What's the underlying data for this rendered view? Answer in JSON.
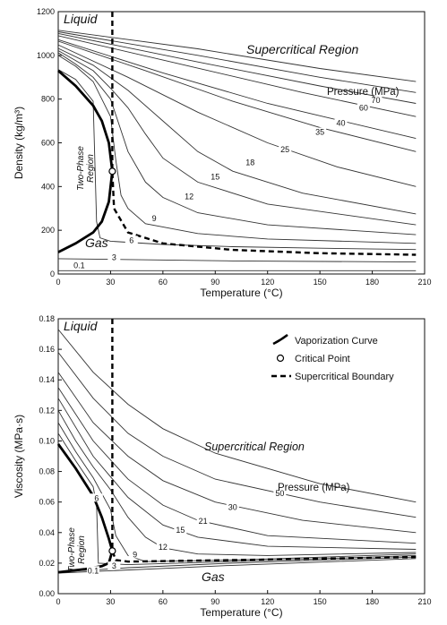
{
  "chart_data": [
    {
      "type": "line",
      "xlabel": "Temperature (°C)",
      "ylabel": "Density (kg/m³)",
      "xlim": [
        0,
        210
      ],
      "ylim": [
        0,
        1200
      ],
      "xticks": [
        0,
        30,
        60,
        90,
        120,
        150,
        180,
        210
      ],
      "yticks": [
        0,
        200,
        400,
        600,
        800,
        1000,
        1200
      ],
      "grid": false,
      "annotations": {
        "liquid": "Liquid",
        "supercritical": "Supercritical Region",
        "two_phase_1": "Two-Phase",
        "two_phase_2": "Region",
        "gas": "Gas",
        "pressure_title": "Pressure (MPa)"
      },
      "isobars": [
        {
          "label": "0.1",
          "points": [
            [
              0,
              15
            ],
            [
              205,
              15
            ]
          ]
        },
        {
          "label": "3",
          "points": [
            [
              0,
              70
            ],
            [
              100,
              60
            ],
            [
              205,
              55
            ]
          ]
        },
        {
          "label": "6",
          "points": [
            [
              0,
              935
            ],
            [
              10,
              890
            ],
            [
              20,
              790
            ],
            [
              22,
              240
            ],
            [
              24,
              165
            ],
            [
              30,
              150
            ],
            [
              60,
              135
            ],
            [
              100,
              125
            ],
            [
              150,
              118
            ],
            [
              205,
              112
            ]
          ]
        },
        {
          "label": "9",
          "points": [
            [
              0,
              1000
            ],
            [
              10,
              950
            ],
            [
              20,
              880
            ],
            [
              30,
              720
            ],
            [
              33,
              520
            ],
            [
              36,
              360
            ],
            [
              40,
              300
            ],
            [
              50,
              230
            ],
            [
              80,
              185
            ],
            [
              120,
              160
            ],
            [
              205,
              140
            ]
          ]
        },
        {
          "label": "12",
          "points": [
            [
              0,
              1012
            ],
            [
              10,
              960
            ],
            [
              20,
              900
            ],
            [
              30,
              800
            ],
            [
              35,
              680
            ],
            [
              40,
              560
            ],
            [
              50,
              420
            ],
            [
              60,
              350
            ],
            [
              80,
              280
            ],
            [
              120,
              225
            ],
            [
              205,
              180
            ]
          ]
        },
        {
          "label": "15",
          "points": [
            [
              0,
              1022
            ],
            [
              20,
              930
            ],
            [
              30,
              850
            ],
            [
              40,
              760
            ],
            [
              50,
              640
            ],
            [
              60,
              530
            ],
            [
              80,
              420
            ],
            [
              120,
              320
            ],
            [
              205,
              225
            ]
          ]
        },
        {
          "label": "18",
          "points": [
            [
              0,
              1032
            ],
            [
              20,
              955
            ],
            [
              40,
              840
            ],
            [
              60,
              700
            ],
            [
              80,
              560
            ],
            [
              100,
              470
            ],
            [
              140,
              370
            ],
            [
              205,
              275
            ]
          ]
        },
        {
          "label": "25",
          "points": [
            [
              0,
              1048
            ],
            [
              40,
              900
            ],
            [
              80,
              740
            ],
            [
              120,
              600
            ],
            [
              160,
              490
            ],
            [
              205,
              400
            ]
          ]
        },
        {
          "label": "35",
          "points": [
            [
              0,
              1065
            ],
            [
              50,
              930
            ],
            [
              100,
              790
            ],
            [
              150,
              670
            ],
            [
              205,
              560
            ]
          ]
        },
        {
          "label": "40",
          "points": [
            [
              0,
              1072
            ],
            [
              60,
              920
            ],
            [
              120,
              780
            ],
            [
              205,
              620
            ]
          ]
        },
        {
          "label": "60",
          "points": [
            [
              0,
              1090
            ],
            [
              70,
              960
            ],
            [
              140,
              830
            ],
            [
              205,
              720
            ]
          ]
        },
        {
          "label": "70",
          "points": [
            [
              0,
              1100
            ],
            [
              80,
              970
            ],
            [
              150,
              860
            ],
            [
              205,
              780
            ]
          ]
        },
        {
          "label": "",
          "points": [
            [
              0,
              1108
            ],
            [
              80,
              1000
            ],
            [
              150,
              900
            ],
            [
              205,
              830
            ]
          ]
        },
        {
          "label": "",
          "points": [
            [
              0,
              1115
            ],
            [
              80,
              1030
            ],
            [
              150,
              940
            ],
            [
              205,
              880
            ]
          ]
        }
      ],
      "vaporization_curve": [
        [
          0,
          930
        ],
        [
          10,
          860
        ],
        [
          20,
          770
        ],
        [
          25,
          700
        ],
        [
          29,
          600
        ],
        [
          31,
          470
        ],
        [
          29,
          330
        ],
        [
          25,
          240
        ],
        [
          20,
          190
        ],
        [
          10,
          140
        ],
        [
          0,
          100
        ]
      ],
      "critical_point": [
        31,
        470
      ],
      "supercritical_boundary": [
        [
          31,
          1200
        ],
        [
          31,
          470
        ],
        [
          32,
          300
        ],
        [
          40,
          190
        ],
        [
          60,
          140
        ],
        [
          100,
          110
        ],
        [
          150,
          95
        ],
        [
          205,
          88
        ]
      ]
    },
    {
      "type": "line",
      "xlabel": "Temperature (°C)",
      "ylabel": "Viscosity (MPa·s)",
      "xlim": [
        0,
        210
      ],
      "ylim": [
        0,
        0.18
      ],
      "xticks": [
        0,
        30,
        60,
        90,
        120,
        150,
        180,
        210
      ],
      "yticks": [
        0,
        0.02,
        0.04,
        0.06,
        0.08,
        0.1,
        0.12,
        0.14,
        0.16,
        0.18
      ],
      "grid": false,
      "legend": {
        "position": "top-right",
        "entries": [
          "Vaporization Curve",
          "Critical Point",
          "Supercritical Boundary"
        ]
      },
      "annotations": {
        "liquid": "Liquid",
        "supercritical": "Supercritical Region",
        "two_phase_1": "Two-Phase",
        "two_phase_2": "Region",
        "gas": "Gas",
        "pressure_title": "Pressure (MPa)"
      },
      "isobars": [
        {
          "label": "0.1",
          "points": [
            [
              0,
              0.0135
            ],
            [
              100,
              0.0185
            ],
            [
              205,
              0.023
            ]
          ]
        },
        {
          "label": "3",
          "points": [
            [
              0,
              0.0145
            ],
            [
              20,
              0.0155
            ],
            [
              40,
              0.017
            ],
            [
              100,
              0.02
            ],
            [
              205,
              0.024
            ]
          ]
        },
        {
          "label": "6",
          "points": [
            [
              0,
              0.105
            ],
            [
              10,
              0.087
            ],
            [
              20,
              0.07
            ],
            [
              22,
              0.058
            ],
            [
              23,
              0.02
            ],
            [
              40,
              0.019
            ],
            [
              100,
              0.021
            ],
            [
              205,
              0.025
            ]
          ]
        },
        {
          "label": "9",
          "points": [
            [
              0,
              0.112
            ],
            [
              10,
              0.093
            ],
            [
              20,
              0.076
            ],
            [
              30,
              0.055
            ],
            [
              33,
              0.038
            ],
            [
              40,
              0.025
            ],
            [
              50,
              0.021
            ],
            [
              100,
              0.022
            ],
            [
              205,
              0.026
            ]
          ]
        },
        {
          "label": "12",
          "points": [
            [
              0,
              0.12
            ],
            [
              10,
              0.1
            ],
            [
              20,
              0.083
            ],
            [
              30,
              0.068
            ],
            [
              40,
              0.05
            ],
            [
              50,
              0.037
            ],
            [
              60,
              0.03
            ],
            [
              80,
              0.026
            ],
            [
              120,
              0.025
            ],
            [
              205,
              0.027
            ]
          ]
        },
        {
          "label": "15",
          "points": [
            [
              0,
              0.128
            ],
            [
              20,
              0.09
            ],
            [
              40,
              0.063
            ],
            [
              60,
              0.045
            ],
            [
              80,
              0.037
            ],
            [
              120,
              0.031
            ],
            [
              205,
              0.029
            ]
          ]
        },
        {
          "label": "21",
          "points": [
            [
              0,
              0.135
            ],
            [
              20,
              0.1
            ],
            [
              40,
              0.075
            ],
            [
              60,
              0.058
            ],
            [
              80,
              0.048
            ],
            [
              120,
              0.038
            ],
            [
              205,
              0.033
            ]
          ]
        },
        {
          "label": "30",
          "points": [
            [
              0,
              0.145
            ],
            [
              20,
              0.112
            ],
            [
              40,
              0.09
            ],
            [
              60,
              0.074
            ],
            [
              90,
              0.06
            ],
            [
              140,
              0.048
            ],
            [
              205,
              0.04
            ]
          ]
        },
        {
          "label": "50",
          "points": [
            [
              0,
              0.158
            ],
            [
              20,
              0.128
            ],
            [
              40,
              0.105
            ],
            [
              60,
              0.09
            ],
            [
              90,
              0.075
            ],
            [
              150,
              0.06
            ],
            [
              205,
              0.05
            ]
          ]
        },
        {
          "label": "",
          "points": [
            [
              0,
              0.173
            ],
            [
              20,
              0.145
            ],
            [
              40,
              0.124
            ],
            [
              60,
              0.108
            ],
            [
              90,
              0.092
            ],
            [
              150,
              0.072
            ],
            [
              205,
              0.06
            ]
          ]
        }
      ],
      "vaporization_curve": [
        [
          0,
          0.098
        ],
        [
          10,
          0.082
        ],
        [
          20,
          0.064
        ],
        [
          25,
          0.05
        ],
        [
          29,
          0.036
        ],
        [
          31,
          0.028
        ],
        [
          29,
          0.02
        ],
        [
          25,
          0.018
        ],
        [
          15,
          0.016
        ],
        [
          0,
          0.014
        ]
      ],
      "critical_point": [
        31,
        0.028
      ],
      "supercritical_boundary": [
        [
          31,
          0.18
        ],
        [
          31,
          0.028
        ],
        [
          33,
          0.022
        ],
        [
          40,
          0.021
        ],
        [
          100,
          0.022
        ],
        [
          205,
          0.024
        ]
      ]
    }
  ],
  "colors": {
    "axis": "#111111",
    "isobar": "#333333",
    "curve": "#000000",
    "background": "#ffffff"
  }
}
